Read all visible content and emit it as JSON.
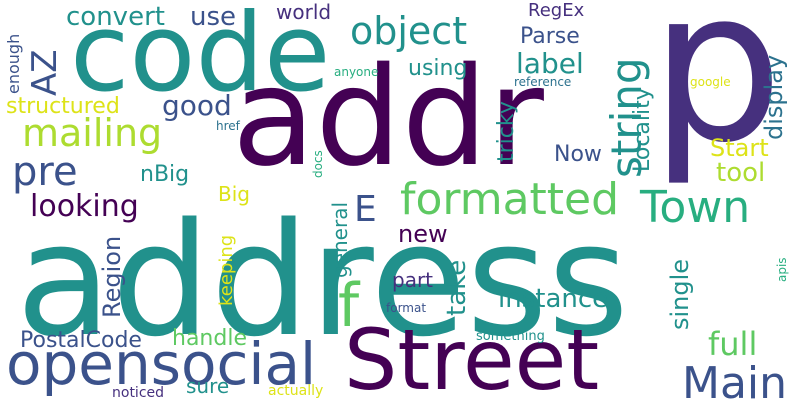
{
  "palette": {
    "purple": "#440154",
    "indigo": "#46307e",
    "navy": "#3b528b",
    "steel": "#2c728e",
    "teal": "#21918c",
    "sea": "#28ae80",
    "green": "#5ec962",
    "lime": "#addc30",
    "yellow": "#dde318"
  },
  "words": {
    "address": "address",
    "addr": "addr",
    "p": "p",
    "code": "code",
    "street": "Street",
    "opensocial": "opensocial",
    "formatted": "formatted",
    "object": "object",
    "string": "string",
    "mailing": "mailing",
    "town": "Town",
    "main": "Main",
    "az": "AZ",
    "pre": "pre",
    "f": "f",
    "e": "E",
    "convert": "convert",
    "use": "use",
    "world": "world",
    "regex": "RegEx",
    "parse": "Parse",
    "label": "label",
    "using": "using",
    "locality": "Locality",
    "display": "display",
    "good": "good",
    "structured": "structured",
    "enough": "enough",
    "tricky": "tricky",
    "now": "Now",
    "start": "Start",
    "tool": "tool",
    "nbig": "nBig",
    "big": "Big",
    "looking": "looking",
    "region": "Region",
    "keeping": "keeping",
    "general": "general",
    "new": "new",
    "part": "part",
    "take": "take",
    "instance": "instance",
    "single": "single",
    "full": "full",
    "postalcode": "PostalCode",
    "handle": "handle",
    "sure": "sure",
    "noticed": "noticed",
    "actually": "actually",
    "something": "something",
    "format": "format",
    "apis": "apis",
    "anyone": "anyone",
    "reference": "reference",
    "google": "google",
    "href": "href",
    "docs": "docs"
  }
}
